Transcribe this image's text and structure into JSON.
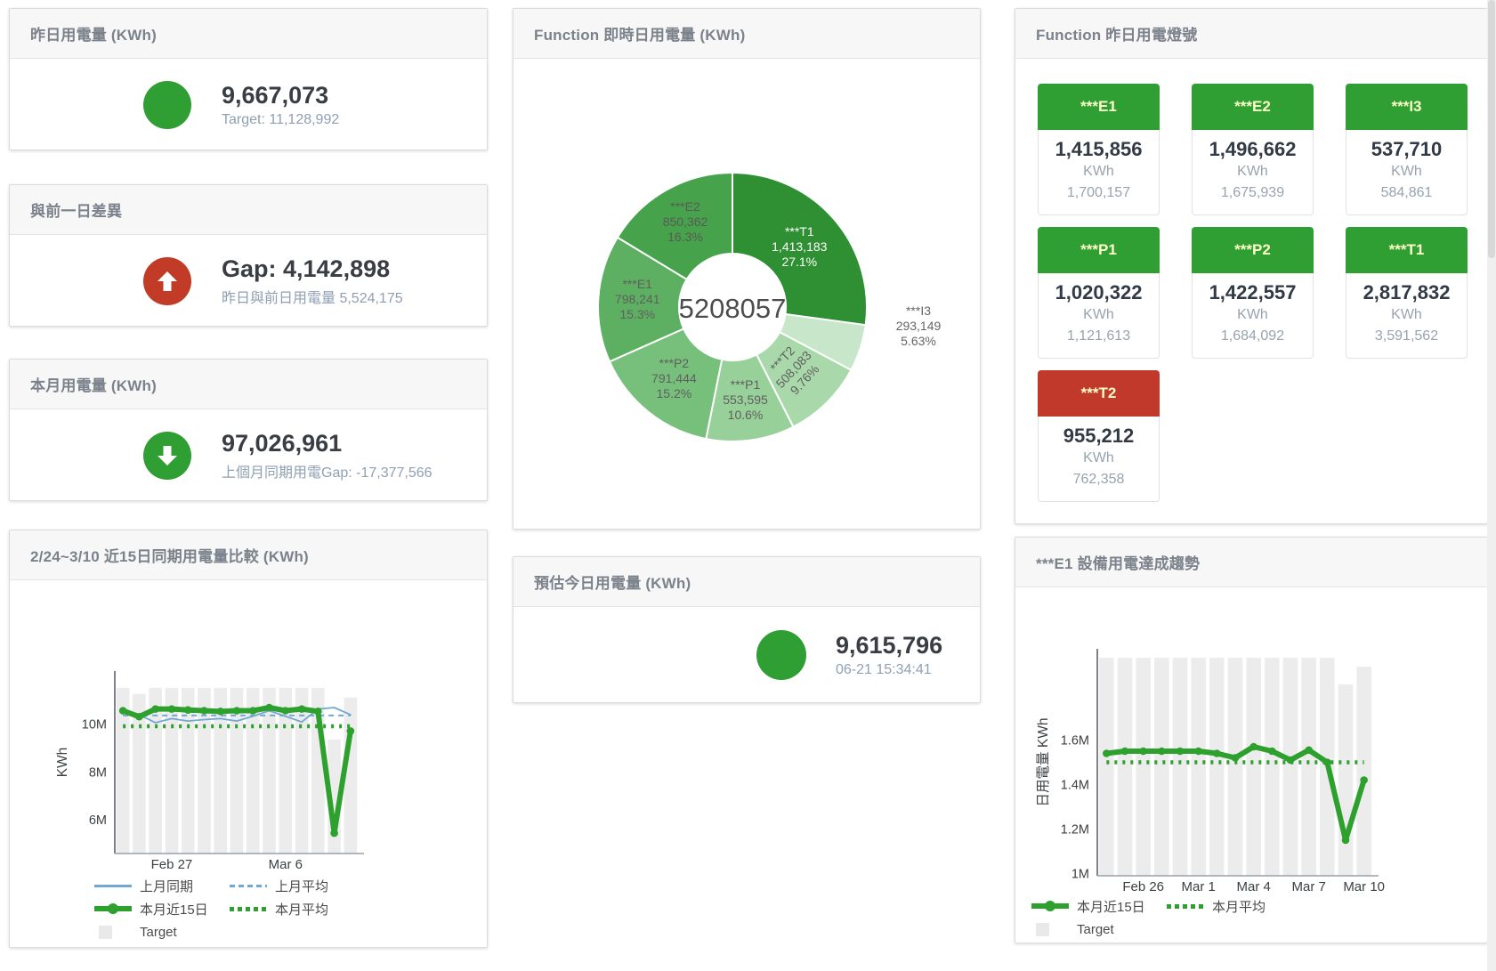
{
  "colors": {
    "green": "#2f9e33",
    "red": "#c13b27",
    "tile_green": "#2f9e33",
    "tile_red": "#c0392b",
    "bar_gray": "#ececec",
    "blue_line": "#72a7d3",
    "green_line": "#2da02d"
  },
  "cards": {
    "yesterday": {
      "title": "昨日用電量 (KWh)",
      "value": "9,667,073",
      "subtitle": "Target: 11,128,992"
    },
    "gap": {
      "title": "與前一日差異",
      "value": "Gap: 4,142,898",
      "subtitle": "昨日與前日用電量 5,524,175"
    },
    "month": {
      "title": "本月用電量 (KWh)",
      "value": "97,026,961",
      "subtitle": "上個月同期用電Gap: -17,377,566"
    },
    "realtime": {
      "title": "Function 即時日用電量 (KWh)"
    },
    "lights": {
      "title": "Function 昨日用電燈號"
    },
    "compare": {
      "title": "2/24~3/10 近15日同期用電量比較 (KWh)"
    },
    "estimate": {
      "title": "預估今日用電量 (KWh)",
      "value": "9,615,796",
      "subtitle": "06-21 15:34:41"
    },
    "trend": {
      "title": "***E1 設備用電達成趨勢"
    }
  },
  "tiles": [
    {
      "name": "***E1",
      "value": "1,415,856",
      "unit": "KWh",
      "target": "1,700,157",
      "status": "green"
    },
    {
      "name": "***E2",
      "value": "1,496,662",
      "unit": "KWh",
      "target": "1,675,939",
      "status": "green"
    },
    {
      "name": "***I3",
      "value": "537,710",
      "unit": "KWh",
      "target": "584,861",
      "status": "green"
    },
    {
      "name": "***P1",
      "value": "1,020,322",
      "unit": "KWh",
      "target": "1,121,613",
      "status": "green"
    },
    {
      "name": "***P2",
      "value": "1,422,557",
      "unit": "KWh",
      "target": "1,684,092",
      "status": "green"
    },
    {
      "name": "***T1",
      "value": "2,817,832",
      "unit": "KWh",
      "target": "3,591,562",
      "status": "green"
    },
    {
      "name": "***T2",
      "value": "955,212",
      "unit": "KWh",
      "target": "762,358",
      "status": "red"
    }
  ],
  "chart_data": [
    {
      "id": "realtime-donut",
      "type": "pie",
      "title": "Function 即時日用電量 (KWh)",
      "center_label": "5208057",
      "slices": [
        {
          "name": "***T1",
          "value": 1413183,
          "value_label": "1,413,183",
          "pct": "27.1%",
          "color": "#2e8f33",
          "label_pos": "inside",
          "label_color": "#ffffff",
          "label_r": 100
        },
        {
          "name": "***I3",
          "value": 293149,
          "value_label": "293,149",
          "pct": "5.63%",
          "color": "#c8e6c9",
          "label_pos": "outside",
          "label_color": "#666666",
          "label_dx": 209,
          "label_dy": 23
        },
        {
          "name": "***T2",
          "value": 508083,
          "value_label": "508,083",
          "pct": "9.76%",
          "color": "#a9d8ab",
          "label_pos": "inside",
          "label_color": "#5f5f5f",
          "label_r": 100,
          "rotate": -47
        },
        {
          "name": "***P1",
          "value": 553595,
          "value_label": "553,595",
          "pct": "10.6%",
          "color": "#97d099",
          "label_pos": "inside",
          "label_color": "#5f5f5f",
          "label_r": 107
        },
        {
          "name": "***P2",
          "value": 791444,
          "value_label": "791,444",
          "pct": "15.2%",
          "color": "#77c07b",
          "label_pos": "inside",
          "label_color": "#5f5f5f",
          "label_r": 105
        },
        {
          "name": "***E1",
          "value": 798241,
          "value_label": "798,241",
          "pct": "15.3%",
          "color": "#5db061",
          "label_pos": "inside",
          "label_color": "#5f5f5f",
          "label_r": 107
        },
        {
          "name": "***E2",
          "value": 850362,
          "value_label": "850,362",
          "pct": "16.3%",
          "color": "#47a34b",
          "label_pos": "inside",
          "label_color": "#595959",
          "label_r": 108
        }
      ]
    },
    {
      "id": "compare-chart",
      "type": "line",
      "title": "2/24~3/10 近15日同期用電量比較 (KWh)",
      "ylabel": "KWh",
      "n": 15,
      "ylim": [
        4600000,
        12200000
      ],
      "yticks": [
        {
          "v": 6000000,
          "label": "6M"
        },
        {
          "v": 8000000,
          "label": "8M"
        },
        {
          "v": 10000000,
          "label": "10M"
        }
      ],
      "xticks": [
        {
          "i": 3,
          "label": "Feb 27"
        },
        {
          "i": 10,
          "label": "Mar 6"
        }
      ],
      "layout": {
        "plotL": 118,
        "plotR": 392,
        "plotT": 102,
        "plotB": 307,
        "xlabelY": 324,
        "ylabelX": 64
      },
      "bars": {
        "name": "Target",
        "color": "#ececec",
        "values": [
          11500000,
          11250000,
          11500000,
          11500000,
          11500000,
          11500000,
          11500000,
          11500000,
          11500000,
          11500000,
          11500000,
          11500000,
          11500000,
          9350000,
          11100000
        ]
      },
      "series": [
        {
          "name": "上月同期",
          "color": "#72a7d3",
          "width": 1.8,
          "dash": "",
          "values": [
            10620000,
            10380000,
            10050000,
            10220000,
            10120000,
            10180000,
            10220000,
            10120000,
            10320000,
            10550000,
            10320000,
            10080000,
            10620000,
            10680000,
            10380000
          ]
        },
        {
          "name": "上月平均",
          "color": "#72a7d3",
          "width": 2,
          "dash": "6 5",
          "values": [
            10350000,
            10350000,
            10350000,
            10350000,
            10350000,
            10350000,
            10350000,
            10350000,
            10350000,
            10350000,
            10350000,
            10350000,
            10350000,
            10350000,
            10350000
          ]
        },
        {
          "name": "本月平均",
          "color": "#2da02d",
          "width": 4.5,
          "dash": "3 6",
          "values": [
            9900000,
            9900000,
            9900000,
            9900000,
            9900000,
            9900000,
            9900000,
            9900000,
            9900000,
            9900000,
            9900000,
            9900000,
            9900000,
            9900000,
            9900000
          ]
        },
        {
          "name": "本月近15日",
          "color": "#2da02d",
          "width": 6,
          "dash": "",
          "markers": true,
          "values": [
            10550000,
            10300000,
            10620000,
            10620000,
            10580000,
            10550000,
            10520000,
            10550000,
            10550000,
            10680000,
            10550000,
            10620000,
            10520000,
            5450000,
            9700000
          ]
        }
      ],
      "legend_rows": [
        [
          {
            "label": "上月同期",
            "swatch": "line",
            "color": "#72a7d3"
          },
          {
            "label": "上月平均",
            "swatch": "dash",
            "color": "#72a7d3"
          }
        ],
        [
          {
            "label": "本月近15日",
            "swatch": "thick",
            "color": "#2da02d"
          },
          {
            "label": "本月平均",
            "swatch": "dots",
            "color": "#2da02d"
          }
        ],
        [
          {
            "label": "Target",
            "swatch": "square",
            "color": "#e9e9e9"
          }
        ]
      ]
    },
    {
      "id": "trend-chart",
      "type": "line",
      "title": "***E1 設備用電達成趨勢",
      "ylabel": "日用電量 KWh",
      "n": 15,
      "ylim": [
        990000,
        2010000
      ],
      "yticks": [
        {
          "v": 1000000,
          "label": "1M"
        },
        {
          "v": 1200000,
          "label": "1.2M"
        },
        {
          "v": 1400000,
          "label": "1.4M"
        },
        {
          "v": 1600000,
          "label": "1.6M"
        }
      ],
      "xticks": [
        {
          "i": 2,
          "label": "Feb 26"
        },
        {
          "i": 5,
          "label": "Mar 1"
        },
        {
          "i": 8,
          "label": "Mar 4"
        },
        {
          "i": 11,
          "label": "Mar 7"
        },
        {
          "i": 14,
          "label": "Mar 10"
        }
      ],
      "layout": {
        "plotL": 92,
        "plotR": 402,
        "plotT": 69,
        "plotB": 324,
        "xlabelY": 341,
        "ylabelX": 36
      },
      "bars": {
        "name": "Target",
        "color": "#ececec",
        "values": [
          1970000,
          1970000,
          1970000,
          1970000,
          1970000,
          1970000,
          1970000,
          1970000,
          1970000,
          1970000,
          1970000,
          1970000,
          1970000,
          1850000,
          1930000
        ]
      },
      "series": [
        {
          "name": "本月平均",
          "color": "#2da02d",
          "width": 4.5,
          "dash": "3 6",
          "values": [
            1500000,
            1500000,
            1500000,
            1500000,
            1500000,
            1500000,
            1500000,
            1500000,
            1500000,
            1500000,
            1500000,
            1500000,
            1500000,
            1500000,
            1500000
          ]
        },
        {
          "name": "本月近15日",
          "color": "#2da02d",
          "width": 6,
          "dash": "",
          "markers": true,
          "values": [
            1540000,
            1550000,
            1550000,
            1550000,
            1550000,
            1550000,
            1540000,
            1520000,
            1570000,
            1550000,
            1510000,
            1555000,
            1500000,
            1150000,
            1420000
          ]
        }
      ],
      "legend_rows": [
        [
          {
            "label": "本月近15日",
            "swatch": "thick",
            "color": "#2da02d"
          },
          {
            "label": "本月平均",
            "swatch": "dots",
            "color": "#2da02d"
          }
        ],
        [
          {
            "label": "Target",
            "swatch": "square",
            "color": "#e9e9e9"
          }
        ]
      ]
    }
  ]
}
